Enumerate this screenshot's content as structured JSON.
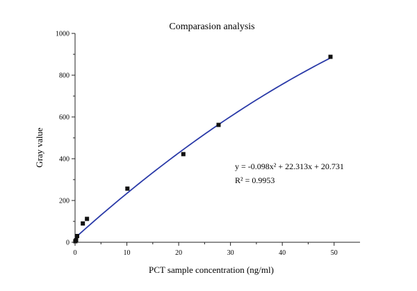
{
  "chart_data": {
    "type": "scatter",
    "title": "Comparasion analysis",
    "xlabel": "PCT sample concentration (ng/ml)",
    "ylabel": "Gray value",
    "xlim": [
      0,
      55
    ],
    "ylim": [
      0,
      1000
    ],
    "x_ticks": [
      0,
      10,
      20,
      30,
      40,
      50
    ],
    "y_ticks": [
      0,
      200,
      400,
      600,
      800,
      1000
    ],
    "grid": false,
    "points": [
      {
        "x": 0.05,
        "y": 5
      },
      {
        "x": 0.2,
        "y": 10
      },
      {
        "x": 0.4,
        "y": 30
      },
      {
        "x": 1.5,
        "y": 90
      },
      {
        "x": 2.3,
        "y": 112
      },
      {
        "x": 10.1,
        "y": 257
      },
      {
        "x": 20.9,
        "y": 422
      },
      {
        "x": 27.7,
        "y": 562
      },
      {
        "x": 49.3,
        "y": 888
      }
    ],
    "fit": {
      "type": "quadratic",
      "a": -0.098,
      "b": 22.313,
      "c": 20.731,
      "x_range": [
        0,
        49.3
      ],
      "equation_text": "y = -0.098x² + 22.313x + 20.731",
      "r2_text": "R² = 0.9953"
    },
    "colors": {
      "points": "#111111",
      "fit_line": "#2a3aa8",
      "axis": "#222222"
    }
  }
}
